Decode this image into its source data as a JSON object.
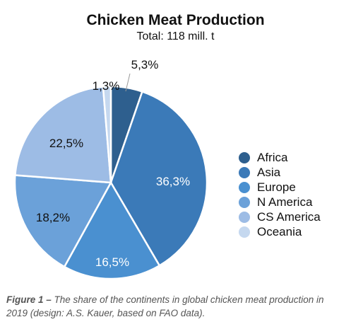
{
  "chart_data": {
    "type": "pie",
    "title": "Chicken Meat Production",
    "subtitle": "Total: 118 mill. t",
    "slices": [
      {
        "name": "Africa",
        "value": 5.3,
        "label": "5,3%",
        "color": "#2e5f8e"
      },
      {
        "name": "Asia",
        "value": 36.3,
        "label": "36,3%",
        "color": "#3b7ab8"
      },
      {
        "name": "Europe",
        "value": 16.5,
        "label": "16,5%",
        "color": "#4a90d0"
      },
      {
        "name": "N America",
        "value": 18.2,
        "label": "18,2%",
        "color": "#6ba1d9"
      },
      {
        "name": "CS America",
        "value": 22.5,
        "label": "22,5%",
        "color": "#9dbce5"
      },
      {
        "name": "Oceania",
        "value": 1.3,
        "label": "1,3%",
        "color": "#c5d8ef"
      }
    ],
    "legend_position": "right"
  },
  "caption": {
    "figure_label": "Figure 1 –",
    "text": " The share of the continents in global chicken meat production in 2019 (design: A.S. Kauer, based on FAO data)."
  }
}
